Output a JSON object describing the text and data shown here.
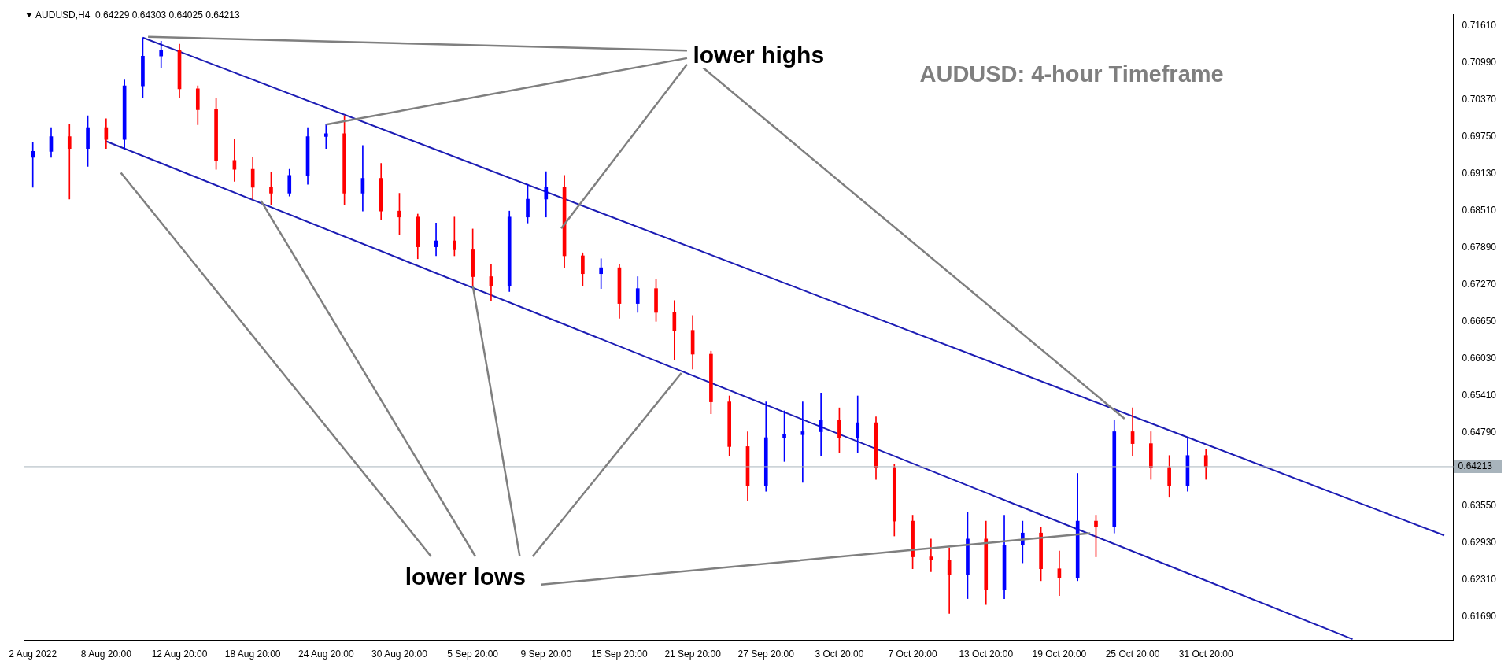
{
  "chart_data": {
    "type": "candlestick",
    "title": "AUDUSD: 4-hour Timeframe",
    "subtitle": "AUDUSD,H4  0.64229 0.64303 0.64025 0.64213",
    "categories": [
      "2 Aug 2022",
      null,
      null,
      null,
      "8 Aug 20:00",
      null,
      null,
      null,
      "12 Aug 20:00",
      null,
      null,
      null,
      "18 Aug 20:00",
      null,
      null,
      null,
      "24 Aug 20:00",
      null,
      null,
      null,
      "30 Aug 20:00",
      null,
      null,
      null,
      "5 Sep 20:00",
      null,
      null,
      null,
      "9 Sep 20:00",
      null,
      null,
      null,
      "15 Sep 20:00",
      null,
      null,
      null,
      "21 Sep 20:00",
      null,
      null,
      null,
      "27 Sep 20:00",
      null,
      null,
      null,
      "3 Oct 20:00",
      null,
      null,
      null,
      "7 Oct 20:00",
      null,
      null,
      null,
      "13 Oct 20:00",
      null,
      null,
      null,
      "19 Oct 20:00",
      null,
      null,
      null,
      "25 Oct 20:00",
      null,
      null,
      null,
      "31 Oct 20:00",
      null,
      null,
      null,
      null,
      null,
      null,
      null,
      null,
      null,
      null,
      null,
      null,
      null
    ],
    "ohlc": [
      [
        0.694,
        0.6965,
        0.689,
        0.695
      ],
      [
        0.695,
        0.699,
        0.694,
        0.6975
      ],
      [
        0.6975,
        0.6995,
        0.687,
        0.6955
      ],
      [
        0.6955,
        0.701,
        0.6925,
        0.699
      ],
      [
        0.699,
        0.7005,
        0.6955,
        0.697
      ],
      [
        0.697,
        0.707,
        0.6955,
        0.706
      ],
      [
        0.706,
        0.7141,
        0.704,
        0.711
      ],
      [
        0.711,
        0.7135,
        0.709,
        0.712
      ],
      [
        0.712,
        0.713,
        0.704,
        0.7055
      ],
      [
        0.7055,
        0.706,
        0.6995,
        0.702
      ],
      [
        0.702,
        0.704,
        0.692,
        0.6935
      ],
      [
        0.6935,
        0.697,
        0.69,
        0.692
      ],
      [
        0.692,
        0.694,
        0.687,
        0.689
      ],
      [
        0.689,
        0.6915,
        0.686,
        0.688
      ],
      [
        0.688,
        0.692,
        0.6875,
        0.691
      ],
      [
        0.691,
        0.699,
        0.6895,
        0.6975
      ],
      [
        0.6975,
        0.6995,
        0.6955,
        0.698
      ],
      [
        0.698,
        0.701,
        0.686,
        0.688
      ],
      [
        0.688,
        0.696,
        0.685,
        0.6905
      ],
      [
        0.6905,
        0.693,
        0.6835,
        0.685
      ],
      [
        0.685,
        0.688,
        0.681,
        0.684
      ],
      [
        0.684,
        0.6845,
        0.677,
        0.679
      ],
      [
        0.679,
        0.683,
        0.6775,
        0.68
      ],
      [
        0.68,
        0.684,
        0.6775,
        0.6785
      ],
      [
        0.6785,
        0.682,
        0.6725,
        0.674
      ],
      [
        0.674,
        0.676,
        0.67,
        0.6725
      ],
      [
        0.6725,
        0.685,
        0.6715,
        0.684
      ],
      [
        0.684,
        0.6895,
        0.683,
        0.687
      ],
      [
        0.687,
        0.6916,
        0.684,
        0.689
      ],
      [
        0.689,
        0.691,
        0.6755,
        0.6775
      ],
      [
        0.6775,
        0.678,
        0.6725,
        0.6745
      ],
      [
        0.6745,
        0.677,
        0.672,
        0.6755
      ],
      [
        0.6755,
        0.676,
        0.667,
        0.6695
      ],
      [
        0.6695,
        0.674,
        0.668,
        0.672
      ],
      [
        0.672,
        0.6735,
        0.6665,
        0.668
      ],
      [
        0.668,
        0.67,
        0.66,
        0.665
      ],
      [
        0.665,
        0.6675,
        0.6585,
        0.661
      ],
      [
        0.661,
        0.6615,
        0.651,
        0.653
      ],
      [
        0.653,
        0.654,
        0.644,
        0.6455
      ],
      [
        0.6455,
        0.648,
        0.6365,
        0.639
      ],
      [
        0.639,
        0.653,
        0.638,
        0.647
      ],
      [
        0.647,
        0.6515,
        0.643,
        0.6475
      ],
      [
        0.6475,
        0.653,
        0.6395,
        0.648
      ],
      [
        0.648,
        0.6545,
        0.644,
        0.65
      ],
      [
        0.65,
        0.652,
        0.6445,
        0.647
      ],
      [
        0.647,
        0.654,
        0.6445,
        0.6495
      ],
      [
        0.6495,
        0.6505,
        0.64,
        0.642
      ],
      [
        0.642,
        0.6425,
        0.6305,
        0.633
      ],
      [
        0.633,
        0.634,
        0.625,
        0.627
      ],
      [
        0.627,
        0.63,
        0.6245,
        0.6265
      ],
      [
        0.6265,
        0.6285,
        0.6175,
        0.624
      ],
      [
        0.624,
        0.6345,
        0.62,
        0.63
      ],
      [
        0.63,
        0.633,
        0.619,
        0.6215
      ],
      [
        0.6215,
        0.634,
        0.62,
        0.629
      ],
      [
        0.629,
        0.633,
        0.626,
        0.631
      ],
      [
        0.631,
        0.632,
        0.623,
        0.625
      ],
      [
        0.625,
        0.628,
        0.6205,
        0.6235
      ],
      [
        0.6235,
        0.641,
        0.623,
        0.633
      ],
      [
        0.633,
        0.634,
        0.627,
        0.632
      ],
      [
        0.632,
        0.65,
        0.631,
        0.648
      ],
      [
        0.648,
        0.652,
        0.644,
        0.646
      ],
      [
        0.646,
        0.648,
        0.64,
        0.642
      ],
      [
        0.642,
        0.644,
        0.637,
        0.639
      ],
      [
        0.639,
        0.647,
        0.638,
        0.644
      ],
      [
        0.644,
        0.645,
        0.64,
        0.64213
      ],
      null,
      null,
      null,
      null,
      null,
      null,
      null,
      null,
      null,
      null,
      null,
      null,
      null
    ],
    "colors": [
      "#0000ff",
      "#0000ff",
      "#ff0000",
      "#0000ff",
      "#ff0000",
      "#0000ff",
      "#0000ff",
      "#0000ff",
      "#ff0000",
      "#ff0000",
      "#ff0000",
      "#ff0000",
      "#ff0000",
      "#ff0000",
      "#0000ff",
      "#0000ff",
      "#0000ff",
      "#ff0000",
      "#0000ff",
      "#ff0000",
      "#ff0000",
      "#ff0000",
      "#0000ff",
      "#ff0000",
      "#ff0000",
      "#ff0000",
      "#0000ff",
      "#0000ff",
      "#0000ff",
      "#ff0000",
      "#ff0000",
      "#0000ff",
      "#ff0000",
      "#0000ff",
      "#ff0000",
      "#ff0000",
      "#ff0000",
      "#ff0000",
      "#ff0000",
      "#ff0000",
      "#0000ff",
      "#0000ff",
      "#0000ff",
      "#0000ff",
      "#ff0000",
      "#0000ff",
      "#ff0000",
      "#ff0000",
      "#ff0000",
      "#ff0000",
      "#ff0000",
      "#0000ff",
      "#ff0000",
      "#0000ff",
      "#0000ff",
      "#ff0000",
      "#ff0000",
      "#0000ff",
      "#ff0000",
      "#0000ff",
      "#ff0000",
      "#ff0000",
      "#ff0000",
      "#0000ff",
      "#ff0000",
      null,
      null,
      null,
      null,
      null,
      null,
      null,
      null,
      null,
      null,
      null,
      null,
      null
    ],
    "series": [
      {
        "type": "line",
        "color": "#1c1cb4",
        "values": [
          null,
          null,
          null,
          null,
          null,
          null,
          0.7141,
          null,
          null,
          null,
          null,
          null,
          null,
          null,
          null,
          null,
          null,
          null,
          null,
          null,
          null,
          null,
          null,
          null,
          null,
          null,
          null,
          null,
          null,
          null,
          null,
          null,
          null,
          null,
          null,
          null,
          null,
          null,
          null,
          null,
          null,
          null,
          null,
          null,
          null,
          null,
          null,
          null,
          null,
          null,
          null,
          null,
          null,
          null,
          null,
          null,
          null,
          null,
          null,
          null,
          null,
          null,
          null,
          null,
          null,
          null,
          null,
          null,
          null,
          null,
          null,
          null,
          null,
          null,
          null,
          null,
          null,
          0.6306
        ]
      },
      {
        "type": "line",
        "color": "#1c1cb4",
        "values": [
          null,
          null,
          null,
          null,
          0.6967,
          null,
          null,
          null,
          null,
          null,
          null,
          null,
          null,
          null,
          null,
          null,
          null,
          null,
          null,
          null,
          null,
          null,
          null,
          null,
          null,
          null,
          null,
          null,
          null,
          null,
          null,
          null,
          null,
          null,
          null,
          null,
          null,
          null,
          null,
          null,
          null,
          null,
          null,
          null,
          null,
          null,
          null,
          null,
          null,
          null,
          null,
          null,
          null,
          null,
          null,
          null,
          null,
          null,
          null,
          null,
          null,
          null,
          null,
          null,
          null,
          null,
          null,
          null,
          null,
          null,
          null,
          null,
          0.6132,
          null,
          null,
          null,
          null,
          null
        ]
      }
    ],
    "ylim": [
      0.613,
      0.718
    ],
    "yticks": [
      {
        "value": 0.7161,
        "label": "0.71610"
      },
      {
        "value": 0.7099,
        "label": "0.70990"
      },
      {
        "value": 0.7037,
        "label": "0.70370"
      },
      {
        "value": 0.6975,
        "label": "0.69750"
      },
      {
        "value": 0.6913,
        "label": "0.69130"
      },
      {
        "value": 0.6851,
        "label": "0.68510"
      },
      {
        "value": 0.6789,
        "label": "0.67890"
      },
      {
        "value": 0.6727,
        "label": "0.67270"
      },
      {
        "value": 0.6665,
        "label": "0.66650"
      },
      {
        "value": 0.6603,
        "label": "0.66030"
      },
      {
        "value": 0.6541,
        "label": "0.65410"
      },
      {
        "value": 0.6479,
        "label": "0.64790"
      },
      {
        "value": 0.6355,
        "label": "0.63550"
      },
      {
        "value": 0.6293,
        "label": "0.62930"
      },
      {
        "value": 0.6231,
        "label": "0.62310"
      },
      {
        "value": 0.6169,
        "label": "0.61690"
      }
    ],
    "ref_lines": [
      {
        "axis": "y",
        "value": 0.64213,
        "label": "0.64213",
        "color": "#a8b4bc"
      }
    ],
    "annotations": [
      {
        "text": "lower highs",
        "x": "24 Aug 20:00",
        "y": 0.6995
      },
      {
        "text": "lower lows",
        "x": "5 Sep 20:00",
        "y": 0.6725
      }
    ],
    "grid": false,
    "legend": false
  }
}
